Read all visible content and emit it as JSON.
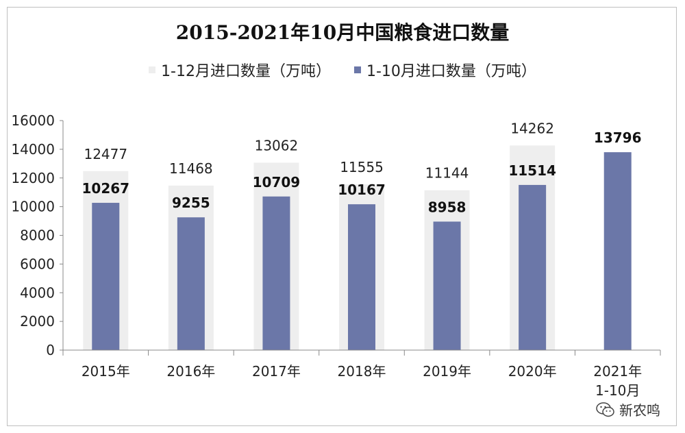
{
  "chart_data": {
    "type": "bar",
    "title": "2015-2021年10月中国粮食进口数量",
    "categories": [
      [
        "2015年"
      ],
      [
        "2016年"
      ],
      [
        "2017年"
      ],
      [
        "2018年"
      ],
      [
        "2019年"
      ],
      [
        "2020年"
      ],
      [
        "2021年",
        "1-10月"
      ]
    ],
    "series": [
      {
        "name": "1-12月进口数量（万吨）",
        "values": [
          12477,
          11468,
          13062,
          11555,
          11144,
          14262,
          null
        ],
        "color": "#eeeeee"
      },
      {
        "name": "1-10月进口数量（万吨）",
        "values": [
          10267,
          9255,
          10709,
          10167,
          8958,
          11514,
          13796
        ],
        "color": "#6b77a8"
      }
    ],
    "ylim": [
      0,
      16000
    ],
    "yticks": [
      0,
      2000,
      4000,
      6000,
      8000,
      10000,
      12000,
      14000,
      16000
    ],
    "grid": false,
    "legend_position": "top"
  },
  "watermark": {
    "text": "新农鸣",
    "icon": "wechat-icon"
  }
}
